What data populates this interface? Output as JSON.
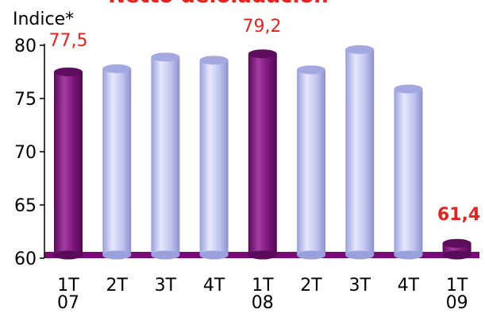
{
  "chart_data": {
    "type": "bar",
    "title": "Netto delòladación",
    "ylabel": "Indice*",
    "ylim": [
      60,
      80
    ],
    "yticks": [
      60,
      65,
      70,
      75,
      80
    ],
    "ytick_labels": [
      "60",
      "65",
      "70",
      "75",
      "80"
    ],
    "categories": [
      {
        "quarter": "1T",
        "year": "07"
      },
      {
        "quarter": "2T",
        "year": ""
      },
      {
        "quarter": "3T",
        "year": ""
      },
      {
        "quarter": "4T",
        "year": ""
      },
      {
        "quarter": "1T",
        "year": "08"
      },
      {
        "quarter": "2T",
        "year": ""
      },
      {
        "quarter": "3T",
        "year": ""
      },
      {
        "quarter": "4T",
        "year": ""
      },
      {
        "quarter": "1T",
        "year": "09"
      }
    ],
    "values": [
      77.5,
      77.8,
      78.9,
      78.6,
      79.2,
      77.7,
      79.6,
      75.9,
      61.4
    ],
    "highlighted": [
      true,
      false,
      false,
      false,
      true,
      false,
      false,
      false,
      true
    ],
    "data_labels": [
      {
        "index": 0,
        "text": "77,5",
        "bold": false
      },
      {
        "index": 4,
        "text": "79,2",
        "bold": false
      },
      {
        "index": 8,
        "text": "61,4",
        "bold": true
      }
    ],
    "colors": {
      "highlight": "#6b0f6b",
      "highlight_light": "#a13aa1",
      "normal": "#b8bcea",
      "normal_light": "#e4e6fb",
      "normal_dark": "#8e93cf",
      "floor": "#7a0a7a",
      "label_red": "#e8231f",
      "axis": "#000000"
    },
    "grid": false,
    "legend": "none"
  }
}
